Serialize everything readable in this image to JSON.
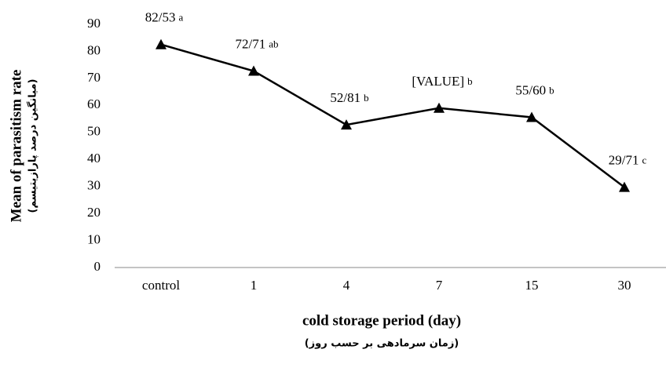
{
  "chart_data": {
    "type": "line",
    "xlabel": "cold storage period (day)",
    "xlabel_sub": "(زمان سرمادهی بر حسب روز)",
    "ylabel": "Mean of parasitism rate",
    "ylabel_sub": "(میانگین درصد پارازیتیسم)",
    "categories": [
      "control",
      "1",
      "4",
      "7",
      "15",
      "30"
    ],
    "values": [
      82.53,
      72.71,
      52.81,
      59,
      55.6,
      29.71
    ],
    "value_labels": [
      "82/53",
      "72/71",
      "52/81",
      "[VALUE]",
      "55/60",
      "29/71"
    ],
    "letters": [
      "a",
      "ab",
      "b",
      "b",
      "b",
      "c"
    ],
    "color": "#000000",
    "ylim": [
      0,
      90
    ],
    "yticks": [
      0,
      10,
      20,
      30,
      40,
      50,
      60,
      70,
      80,
      90
    ],
    "grid": false
  }
}
